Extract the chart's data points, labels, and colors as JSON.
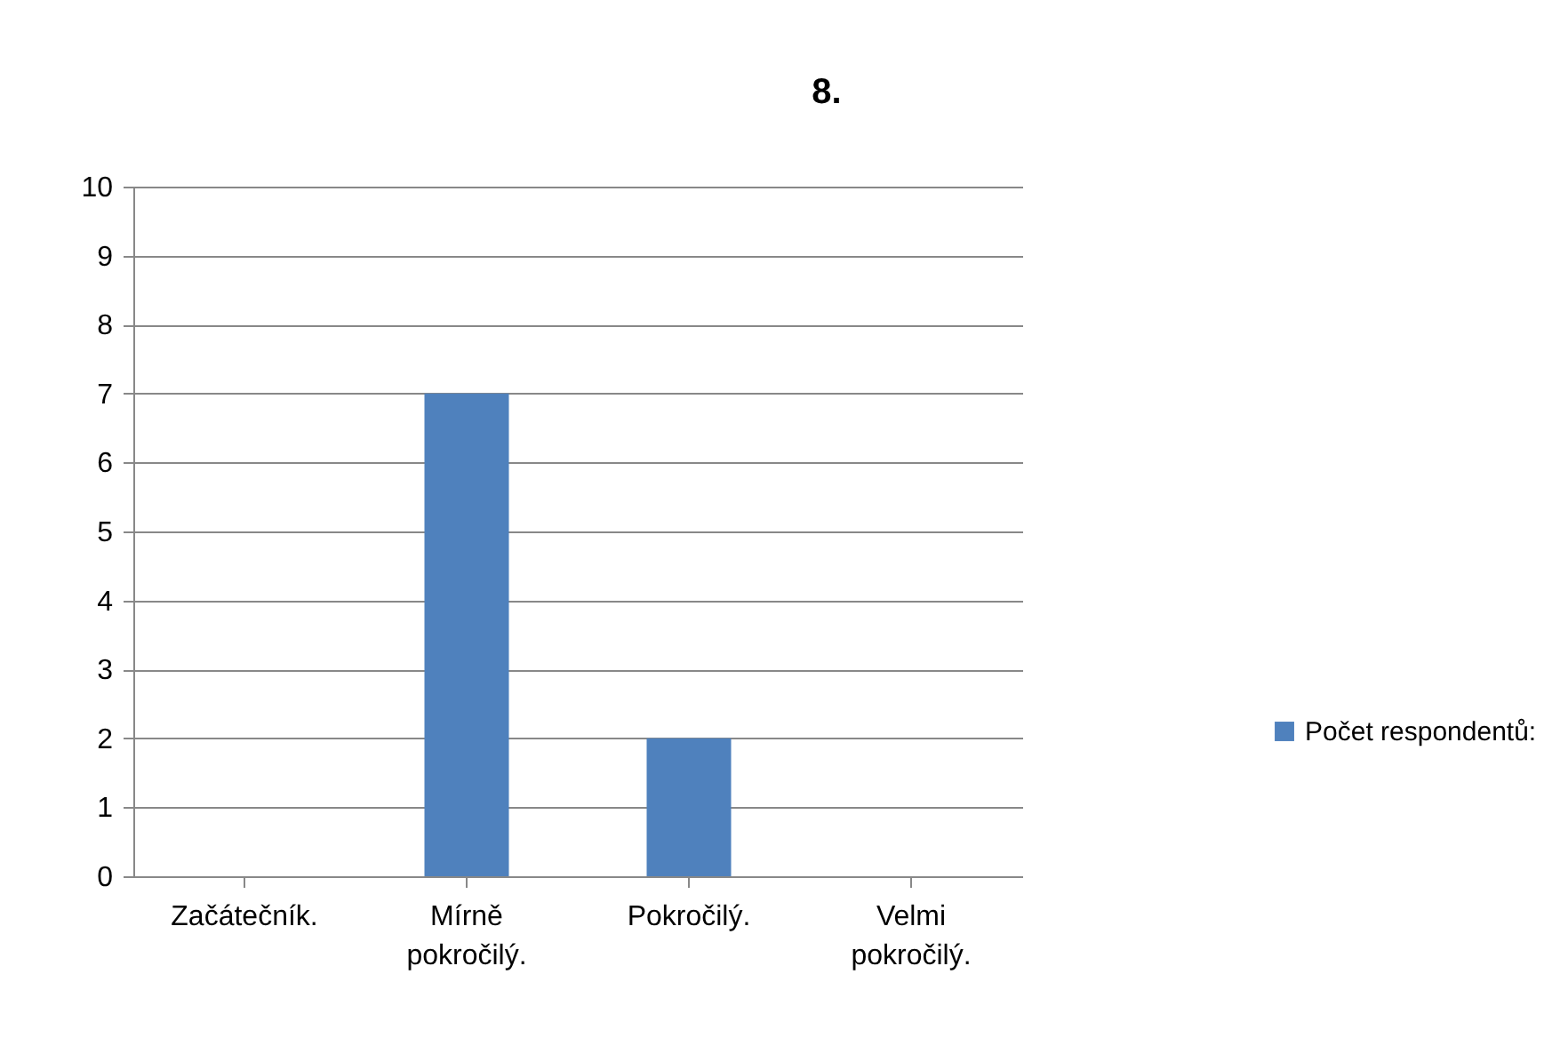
{
  "chart_data": {
    "type": "bar",
    "title": "8.",
    "categories": [
      "Začátečník.",
      "Mírně pokročilý.",
      "Pokročilý.",
      "Velmi pokročilý."
    ],
    "series": [
      {
        "name": "Počet respondentů:",
        "color": "#4f81bd",
        "values": [
          0,
          7,
          2,
          0
        ]
      }
    ],
    "ylim": [
      0,
      10
    ],
    "yticks": [
      0,
      1,
      2,
      3,
      4,
      5,
      6,
      7,
      8,
      9,
      10
    ],
    "grid": "y",
    "legend": "right"
  }
}
